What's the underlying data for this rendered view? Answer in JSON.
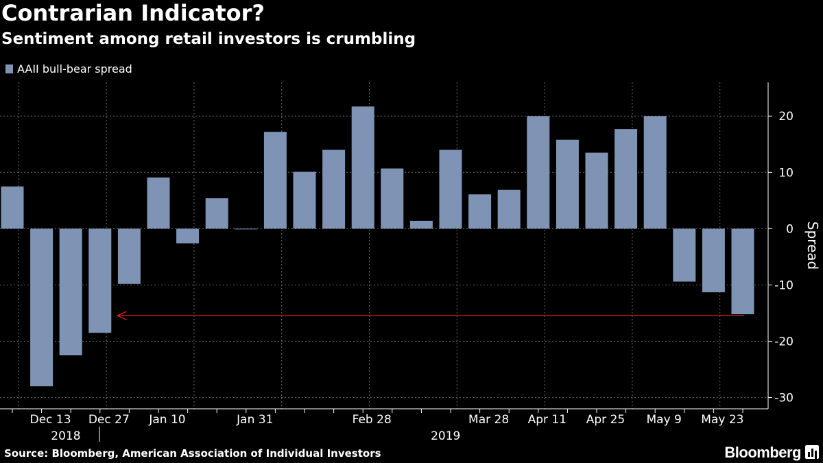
{
  "title": "Contrarian Indicator?",
  "subtitle": "Sentiment among retail investors is crumbling",
  "legend_label": "AAII bull-bear spread",
  "source": "Source: Bloomberg,  American Association of Individual Investors",
  "brand": "Bloomberg",
  "colors": {
    "bar": "#7f94b5",
    "arrow": "#e02020",
    "grid": "#6a6a6a",
    "background": "#000000"
  },
  "chart_data": {
    "type": "bar",
    "ylabel": "Spread",
    "ylim": [
      -32,
      26
    ],
    "yticks": [
      20,
      10,
      0,
      -10,
      -20,
      -30
    ],
    "grid": true,
    "legend_position": "top-left",
    "categories": [
      "2018-12-06",
      "2018-12-13",
      "2018-12-20",
      "2018-12-27",
      "2019-01-03",
      "2019-01-10",
      "2019-01-17",
      "2019-01-24",
      "2019-01-31",
      "2019-02-07",
      "2019-02-14",
      "2019-02-21",
      "2019-02-28",
      "2019-03-07",
      "2019-03-14",
      "2019-03-21",
      "2019-03-28",
      "2019-04-04",
      "2019-04-11",
      "2019-04-18",
      "2019-04-25",
      "2019-05-02",
      "2019-05-09",
      "2019-05-16",
      "2019-05-23",
      "2019-05-30"
    ],
    "values": [
      7.5,
      -28,
      -22.5,
      -18.5,
      -9.8,
      9.1,
      -2.6,
      5.4,
      -0.1,
      17.2,
      10.1,
      14,
      21.7,
      10.7,
      1.4,
      14,
      6.1,
      6.9,
      20,
      15.8,
      13.5,
      17.7,
      20,
      -9.4,
      -11.3,
      -15.2
    ],
    "x_tick_labels": [
      {
        "index": 1,
        "label": "Dec 13"
      },
      {
        "index": 3,
        "label": "Dec 27"
      },
      {
        "index": 5,
        "label": "Jan 10"
      },
      {
        "index": 8,
        "label": "Jan 31"
      },
      {
        "index": 12,
        "label": "Feb 28"
      },
      {
        "index": 16,
        "label": "Mar 28"
      },
      {
        "index": 18,
        "label": "Apr 11"
      },
      {
        "index": 20,
        "label": "Apr 25"
      },
      {
        "index": 22,
        "label": "May 9"
      },
      {
        "index": 24,
        "label": "May 23"
      }
    ],
    "year_labels": [
      {
        "label": "2018",
        "index": 1.5
      },
      {
        "label": "2019",
        "index": 14.5
      }
    ],
    "annotation_arrow": {
      "from_index": 25,
      "to_index": 3.5,
      "value": -15.2
    }
  }
}
